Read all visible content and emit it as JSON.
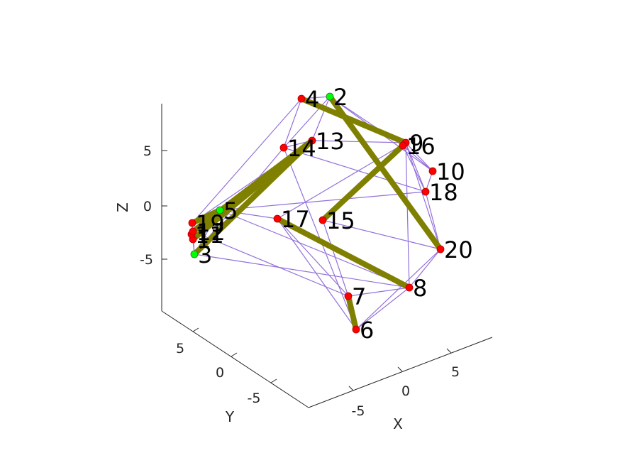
{
  "colors": {
    "edge": "#9370DB",
    "highlight_edge": "#808000",
    "node_red": "#FF0000",
    "node_green": "#00FF00",
    "axis": "#262626"
  },
  "chart_data": {
    "type": "scatter",
    "dimensions": 3,
    "xlabel": "X",
    "ylabel": "Y",
    "zlabel": "Z",
    "x_ticks": [
      "-5",
      "0",
      "5"
    ],
    "y_ticks": [
      "-5",
      "0",
      "5"
    ],
    "z_ticks": [
      "-5",
      "0",
      "5"
    ],
    "xlim": [
      -9,
      9
    ],
    "ylim": [
      -9,
      9
    ],
    "zlim": [
      -9,
      9
    ],
    "grid": false,
    "nodes": [
      {
        "id": "1",
        "label": "1",
        "color": "red"
      },
      {
        "id": "2",
        "label": "2",
        "color": "green"
      },
      {
        "id": "3",
        "label": "3",
        "color": "green"
      },
      {
        "id": "4",
        "label": "4",
        "color": "red"
      },
      {
        "id": "5",
        "label": "5",
        "color": "green"
      },
      {
        "id": "6",
        "label": "6",
        "color": "red"
      },
      {
        "id": "7",
        "label": "7",
        "color": "red"
      },
      {
        "id": "8",
        "label": "8",
        "color": "red"
      },
      {
        "id": "9",
        "label": "9",
        "color": "red"
      },
      {
        "id": "10",
        "label": "10",
        "color": "red"
      },
      {
        "id": "11",
        "label": "11",
        "color": "red"
      },
      {
        "id": "12",
        "label": "12",
        "color": "red"
      },
      {
        "id": "13",
        "label": "13",
        "color": "red"
      },
      {
        "id": "14",
        "label": "14",
        "color": "red"
      },
      {
        "id": "15",
        "label": "15",
        "color": "red"
      },
      {
        "id": "16",
        "label": "16",
        "color": "red"
      },
      {
        "id": "17",
        "label": "17",
        "color": "red"
      },
      {
        "id": "18",
        "label": "18",
        "color": "red"
      },
      {
        "id": "19",
        "label": "19",
        "color": "red"
      },
      {
        "id": "20",
        "label": "20",
        "color": "red"
      }
    ],
    "edges": [
      [
        "4",
        "2"
      ],
      [
        "4",
        "14"
      ],
      [
        "4",
        "19"
      ],
      [
        "4",
        "9"
      ],
      [
        "2",
        "13"
      ],
      [
        "2",
        "16"
      ],
      [
        "2",
        "10"
      ],
      [
        "2",
        "14"
      ],
      [
        "13",
        "9"
      ],
      [
        "13",
        "14"
      ],
      [
        "13",
        "19"
      ],
      [
        "14",
        "3"
      ],
      [
        "14",
        "6"
      ],
      [
        "14",
        "18"
      ],
      [
        "9",
        "16"
      ],
      [
        "9",
        "10"
      ],
      [
        "9",
        "18"
      ],
      [
        "9",
        "8"
      ],
      [
        "9",
        "20"
      ],
      [
        "9",
        "17"
      ],
      [
        "16",
        "10"
      ],
      [
        "16",
        "18"
      ],
      [
        "10",
        "18"
      ],
      [
        "18",
        "20"
      ],
      [
        "18",
        "5"
      ],
      [
        "20",
        "8"
      ],
      [
        "20",
        "6"
      ],
      [
        "20",
        "15"
      ],
      [
        "17",
        "7"
      ],
      [
        "17",
        "6"
      ],
      [
        "17",
        "8"
      ],
      [
        "17",
        "5"
      ],
      [
        "15",
        "7"
      ],
      [
        "15",
        "9"
      ],
      [
        "7",
        "8"
      ],
      [
        "7",
        "6"
      ],
      [
        "6",
        "8"
      ],
      [
        "8",
        "5"
      ],
      [
        "19",
        "12"
      ],
      [
        "19",
        "11"
      ],
      [
        "19",
        "1"
      ],
      [
        "12",
        "3"
      ],
      [
        "12",
        "11"
      ],
      [
        "11",
        "1"
      ],
      [
        "1",
        "3"
      ],
      [
        "3",
        "5"
      ],
      [
        "1",
        "5"
      ],
      [
        "3",
        "8"
      ],
      [
        "12",
        "7"
      ],
      [
        "19",
        "5"
      ],
      [
        "11",
        "13"
      ]
    ],
    "highlighted_edges": [
      [
        "4",
        "9"
      ],
      [
        "2",
        "20"
      ],
      [
        "16",
        "15"
      ],
      [
        "17",
        "8"
      ],
      [
        "7",
        "6"
      ],
      [
        "3",
        "13"
      ],
      [
        "12",
        "13"
      ],
      [
        "1",
        "13"
      ],
      [
        "19",
        "5"
      ]
    ]
  }
}
